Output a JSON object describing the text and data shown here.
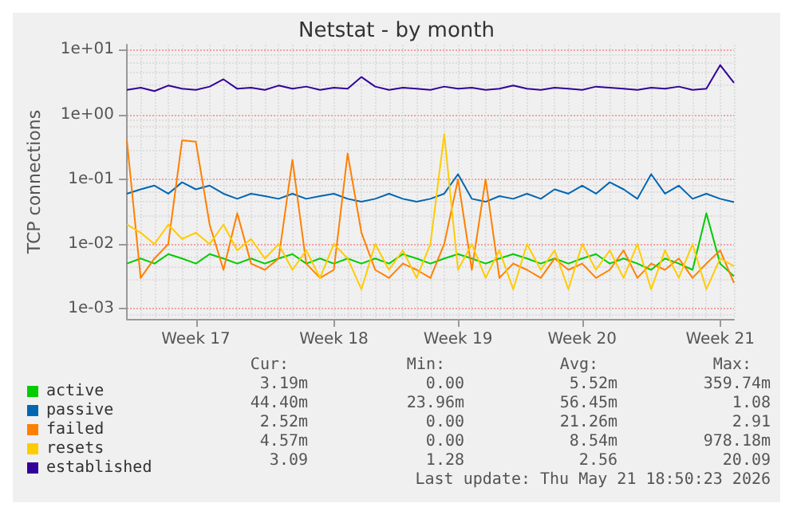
{
  "chart_data": {
    "type": "line",
    "title": "Netstat - by month",
    "ylabel": "TCP connections",
    "categories": [
      null,
      null,
      null,
      null,
      null,
      "Week 17",
      null,
      null,
      null,
      null,
      null,
      null,
      null,
      null,
      null,
      "Week 18",
      null,
      null,
      null,
      null,
      null,
      null,
      null,
      null,
      "Week 19",
      null,
      null,
      null,
      null,
      null,
      null,
      null,
      null,
      "Week 20",
      null,
      null,
      null,
      null,
      null,
      null,
      null,
      null,
      null,
      "Week 21",
      null
    ],
    "series": [
      {
        "name": "active",
        "color": "#00cc00",
        "values": [
          0.005,
          0.006,
          0.005,
          0.007,
          0.006,
          0.005,
          0.007,
          0.006,
          0.005,
          0.006,
          0.005,
          0.006,
          0.007,
          0.005,
          0.006,
          0.005,
          0.006,
          0.005,
          0.006,
          0.005,
          0.007,
          0.006,
          0.005,
          0.006,
          0.007,
          0.006,
          0.005,
          0.006,
          0.007,
          0.006,
          0.005,
          0.006,
          0.005,
          0.006,
          0.007,
          0.005,
          0.006,
          0.005,
          0.004,
          0.006,
          0.005,
          0.004,
          0.03,
          0.005,
          0.00319
        ]
      },
      {
        "name": "passive",
        "color": "#0066b3",
        "values": [
          0.06,
          0.07,
          0.08,
          0.06,
          0.09,
          0.07,
          0.08,
          0.06,
          0.05,
          0.06,
          0.055,
          0.05,
          0.06,
          0.05,
          0.055,
          0.06,
          0.05,
          0.045,
          0.05,
          0.06,
          0.05,
          0.045,
          0.05,
          0.06,
          0.12,
          0.05,
          0.045,
          0.055,
          0.05,
          0.06,
          0.05,
          0.07,
          0.06,
          0.08,
          0.06,
          0.09,
          0.07,
          0.05,
          0.12,
          0.06,
          0.08,
          0.05,
          0.06,
          0.05,
          0.0444
        ]
      },
      {
        "name": "failed",
        "color": "#ff8000",
        "values": [
          0.4,
          0.003,
          0.006,
          0.01,
          0.4,
          0.38,
          0.02,
          0.004,
          0.03,
          0.005,
          0.004,
          0.006,
          0.2,
          0.005,
          0.003,
          0.004,
          0.25,
          0.015,
          0.004,
          0.003,
          0.005,
          0.004,
          0.003,
          0.01,
          0.1,
          0.004,
          0.1,
          0.003,
          0.005,
          0.004,
          0.003,
          0.006,
          0.004,
          0.005,
          0.003,
          0.004,
          0.008,
          0.003,
          0.005,
          0.004,
          0.006,
          0.003,
          0.005,
          0.008,
          0.00252
        ]
      },
      {
        "name": "resets",
        "color": "#ffcc00",
        "values": [
          0.02,
          0.015,
          0.01,
          0.02,
          0.012,
          0.015,
          0.01,
          0.02,
          0.008,
          0.012,
          0.006,
          0.01,
          0.004,
          0.008,
          0.003,
          0.01,
          0.006,
          0.002,
          0.01,
          0.004,
          0.008,
          0.003,
          0.01,
          0.5,
          0.004,
          0.01,
          0.003,
          0.008,
          0.002,
          0.01,
          0.004,
          0.008,
          0.002,
          0.01,
          0.004,
          0.008,
          0.003,
          0.01,
          0.002,
          0.008,
          0.003,
          0.01,
          0.002,
          0.006,
          0.00457
        ]
      },
      {
        "name": "established",
        "color": "#330099",
        "values": [
          2.4,
          2.6,
          2.3,
          2.8,
          2.5,
          2.4,
          2.7,
          3.5,
          2.5,
          2.6,
          2.4,
          2.8,
          2.5,
          2.7,
          2.4,
          2.6,
          2.5,
          3.8,
          2.7,
          2.4,
          2.6,
          2.5,
          2.4,
          2.7,
          2.5,
          2.6,
          2.4,
          2.5,
          2.8,
          2.5,
          2.4,
          2.6,
          2.5,
          2.4,
          2.7,
          2.6,
          2.5,
          2.4,
          2.6,
          2.5,
          2.7,
          2.4,
          2.5,
          5.8,
          3.09
        ]
      }
    ],
    "log": true,
    "ylim": [
      0.0007,
      12
    ],
    "yticks": [
      {
        "value": 0.001,
        "label": "1e-03"
      },
      {
        "value": 0.01,
        "label": "1e-02"
      },
      {
        "value": 0.1,
        "label": "1e-01"
      },
      {
        "value": 1,
        "label": "1e+00"
      },
      {
        "value": 10,
        "label": "1e+01"
      }
    ],
    "grid": true,
    "legend": "bottom",
    "marker": "none",
    "line_style": "solid",
    "annotations": [
      "Cur:",
      "Min:",
      "Avg:",
      "Max:",
      "3.19m",
      "0.00",
      "5.52m",
      "359.74m",
      "44.40m",
      "23.96m",
      "56.45m",
      "1.08",
      "2.52m",
      "0.00",
      "21.26m",
      "2.91",
      "4.57m",
      "0.00",
      "8.54m",
      "978.18m",
      "3.09",
      "1.28",
      "2.56",
      "20.09",
      "Last update: Thu May 21 18:50:23 2026"
    ]
  }
}
